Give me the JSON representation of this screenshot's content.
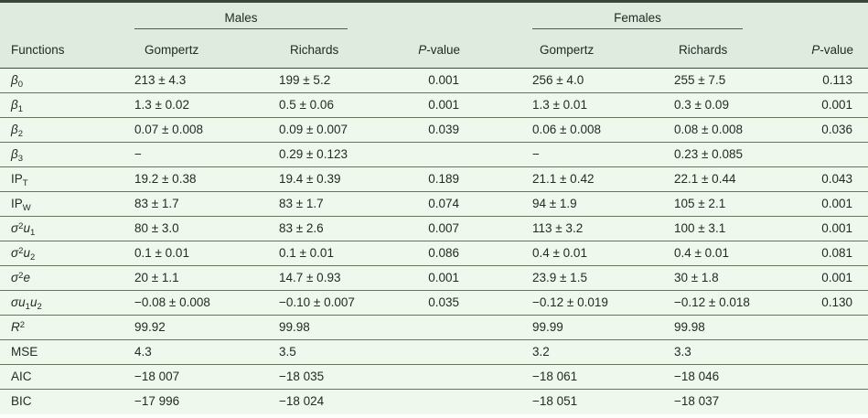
{
  "table": {
    "functions_header": "Functions",
    "groups": [
      {
        "label": "Males"
      },
      {
        "label": "Females"
      }
    ],
    "sub_headers": {
      "gompertz": "Gompertz",
      "richards": "Richards",
      "p_value": "*P*-value"
    },
    "rows": [
      {
        "label": "*β*_{0}",
        "cells": [
          "213 ± 4.3",
          "199 ± 5.2",
          "0.001",
          "256 ± 4.0",
          "255 ± 7.5",
          "0.113"
        ]
      },
      {
        "label": "*β*_{1}",
        "cells": [
          "1.3 ± 0.02",
          "0.5 ± 0.06",
          "0.001",
          "1.3 ± 0.01",
          "0.3 ± 0.09",
          "0.001"
        ]
      },
      {
        "label": "*β*_{2}",
        "cells": [
          "0.07 ± 0.008",
          "0.09 ± 0.007",
          "0.039",
          "0.06 ± 0.008",
          "0.08 ± 0.008",
          "0.036"
        ]
      },
      {
        "label": "*β*_{3}",
        "cells": [
          "−",
          "0.29 ± 0.123",
          "",
          "−",
          "0.23 ± 0.085",
          ""
        ]
      },
      {
        "label": "IP_{T}",
        "cells": [
          "19.2 ± 0.38",
          "19.4 ± 0.39",
          "0.189",
          "21.1 ± 0.42",
          "22.1 ± 0.44",
          "0.043"
        ]
      },
      {
        "label": "IP_{W}",
        "cells": [
          "83 ± 1.7",
          "83 ± 1.7",
          "0.074",
          "94 ± 1.9",
          "105 ± 2.1",
          "0.001"
        ]
      },
      {
        "label": "*σ*^{2}*u*_{1}",
        "cells": [
          "80 ± 3.0",
          "83 ± 2.6",
          "0.007",
          "113 ± 3.2",
          "100 ± 3.1",
          "0.001"
        ]
      },
      {
        "label": "*σ*^{2}*u*_{2}",
        "cells": [
          "0.1 ± 0.01",
          "0.1 ± 0.01",
          "0.086",
          "0.4 ± 0.01",
          "0.4 ± 0.01",
          "0.081"
        ]
      },
      {
        "label": "*σ*^{2}*e*",
        "cells": [
          "20 ± 1.1",
          "14.7 ± 0.93",
          "0.001",
          "23.9 ± 1.5",
          "30 ± 1.8",
          "0.001"
        ]
      },
      {
        "label": "*σu*_{1}*u*_{2}",
        "cells": [
          "−0.08 ± 0.008",
          "−0.10 ± 0.007",
          "0.035",
          "−0.12 ± 0.019",
          "−0.12 ± 0.018",
          "0.130"
        ]
      },
      {
        "label": "*R*^{2}",
        "cells": [
          "99.92",
          "99.98",
          "",
          "99.99",
          "99.98",
          ""
        ]
      },
      {
        "label": "MSE",
        "cells": [
          "4.3",
          "3.5",
          "",
          "3.2",
          "3.3",
          ""
        ]
      },
      {
        "label": "AIC",
        "cells": [
          "−18 007",
          "−18 035",
          "",
          "−18 061",
          "−18 046",
          ""
        ]
      },
      {
        "label": "BIC",
        "cells": [
          "−17 996",
          "−18 024",
          "",
          "−18 051",
          "−18 037",
          ""
        ]
      }
    ],
    "colors": {
      "header_bg": "#e0ebe0",
      "body_bg": "#eef8ec",
      "border_dark": "#3a463c",
      "border_bottom": "#232a22",
      "rule": "#68725f",
      "text": "#232b24"
    }
  }
}
